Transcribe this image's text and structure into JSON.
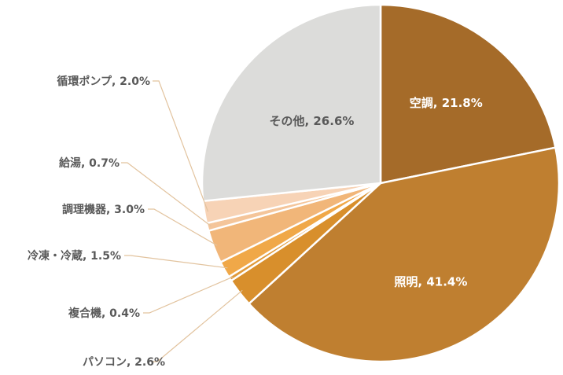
{
  "chart_data": {
    "type": "pie",
    "start_angle_deg": 0,
    "direction": "clockwise",
    "slices": [
      {
        "name": "空調",
        "value": 21.8,
        "label": "空調, 21.8%",
        "color": "#a56b29",
        "label_color": "#ffffff",
        "label_position": "inside"
      },
      {
        "name": "照明",
        "value": 41.4,
        "label": "照明, 41.4%",
        "color": "#bf7f30",
        "label_color": "#ffffff",
        "label_position": "inside"
      },
      {
        "name": "パソコン",
        "value": 2.6,
        "label": "パソコン, 2.6%",
        "color": "#d88f2c",
        "label_color": "#595959",
        "label_position": "outside"
      },
      {
        "name": "複合機",
        "value": 0.4,
        "label": "複合機, 0.4%",
        "color": "#e09a3a",
        "label_color": "#595959",
        "label_position": "outside"
      },
      {
        "name": "冷凍・冷蔵",
        "value": 1.5,
        "label": "冷凍・冷蔵, 1.5%",
        "color": "#f0a848",
        "label_color": "#595959",
        "label_position": "outside"
      },
      {
        "name": "調理機器",
        "value": 3.0,
        "label": "調理機器, 3.0%",
        "color": "#f1b679",
        "label_color": "#595959",
        "label_position": "outside"
      },
      {
        "name": "給湯",
        "value": 0.7,
        "label": "給湯, 0.7%",
        "color": "#f4c59a",
        "label_color": "#595959",
        "label_position": "outside"
      },
      {
        "name": "循環ポンプ",
        "value": 2.0,
        "label": "循環ポンプ, 2.0%",
        "color": "#f7d3b6",
        "label_color": "#595959",
        "label_position": "outside"
      },
      {
        "name": "その他",
        "value": 26.6,
        "label": "その他, 26.6%",
        "color": "#dcdcda",
        "label_color": "#595959",
        "label_position": "inside"
      }
    ],
    "leader_line_color": "#e2c39e"
  }
}
